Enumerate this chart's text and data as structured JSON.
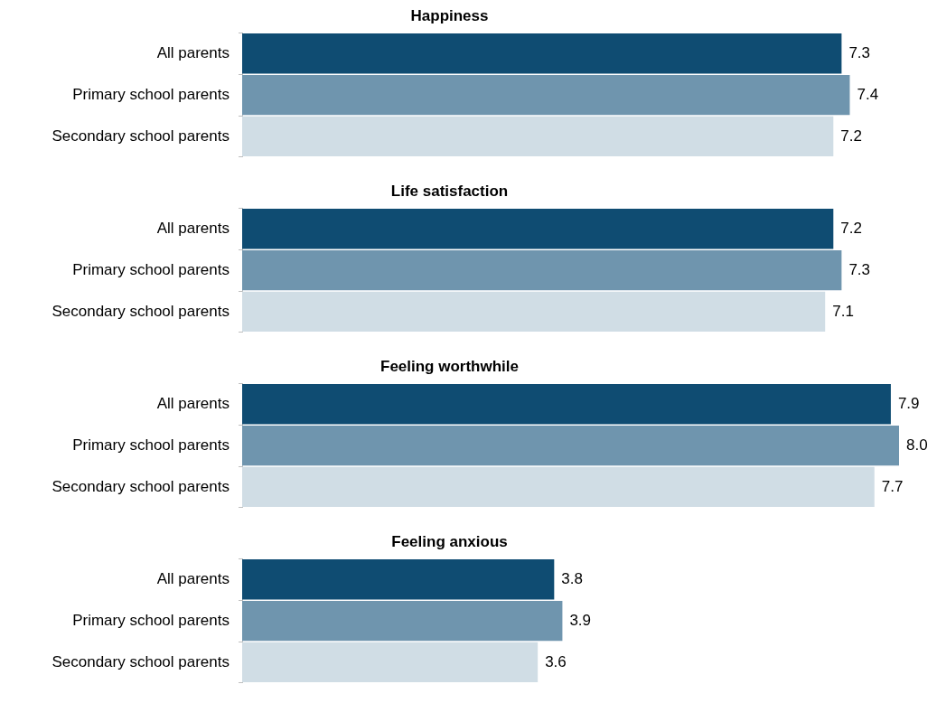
{
  "chart_data": [
    {
      "type": "bar",
      "orientation": "horizontal",
      "title": "Happiness",
      "categories": [
        "All parents",
        "Primary school parents",
        "Secondary school parents"
      ],
      "values": [
        7.3,
        7.4,
        7.2
      ],
      "value_labels": [
        "7.3",
        "7.4",
        "7.2"
      ],
      "colors": [
        "#0f4c72",
        "#6f95ae",
        "#d0dde5"
      ]
    },
    {
      "type": "bar",
      "orientation": "horizontal",
      "title": "Life satisfaction",
      "categories": [
        "All parents",
        "Primary school parents",
        "Secondary school parents"
      ],
      "values": [
        7.2,
        7.3,
        7.1
      ],
      "value_labels": [
        "7.2",
        "7.3",
        "7.1"
      ],
      "colors": [
        "#0f4c72",
        "#6f95ae",
        "#d0dde5"
      ]
    },
    {
      "type": "bar",
      "orientation": "horizontal",
      "title": "Feeling worthwhile",
      "categories": [
        "All parents",
        "Primary school parents",
        "Secondary school parents"
      ],
      "values": [
        7.9,
        8.0,
        7.7
      ],
      "value_labels": [
        "7.9",
        "8.0",
        "7.7"
      ],
      "colors": [
        "#0f4c72",
        "#6f95ae",
        "#d0dde5"
      ]
    },
    {
      "type": "bar",
      "orientation": "horizontal",
      "title": "Feeling anxious",
      "categories": [
        "All parents",
        "Primary school parents",
        "Secondary school parents"
      ],
      "values": [
        3.8,
        3.9,
        3.6
      ],
      "value_labels": [
        "3.8",
        "3.9",
        "3.6"
      ],
      "colors": [
        "#0f4c72",
        "#6f95ae",
        "#d0dde5"
      ]
    }
  ]
}
